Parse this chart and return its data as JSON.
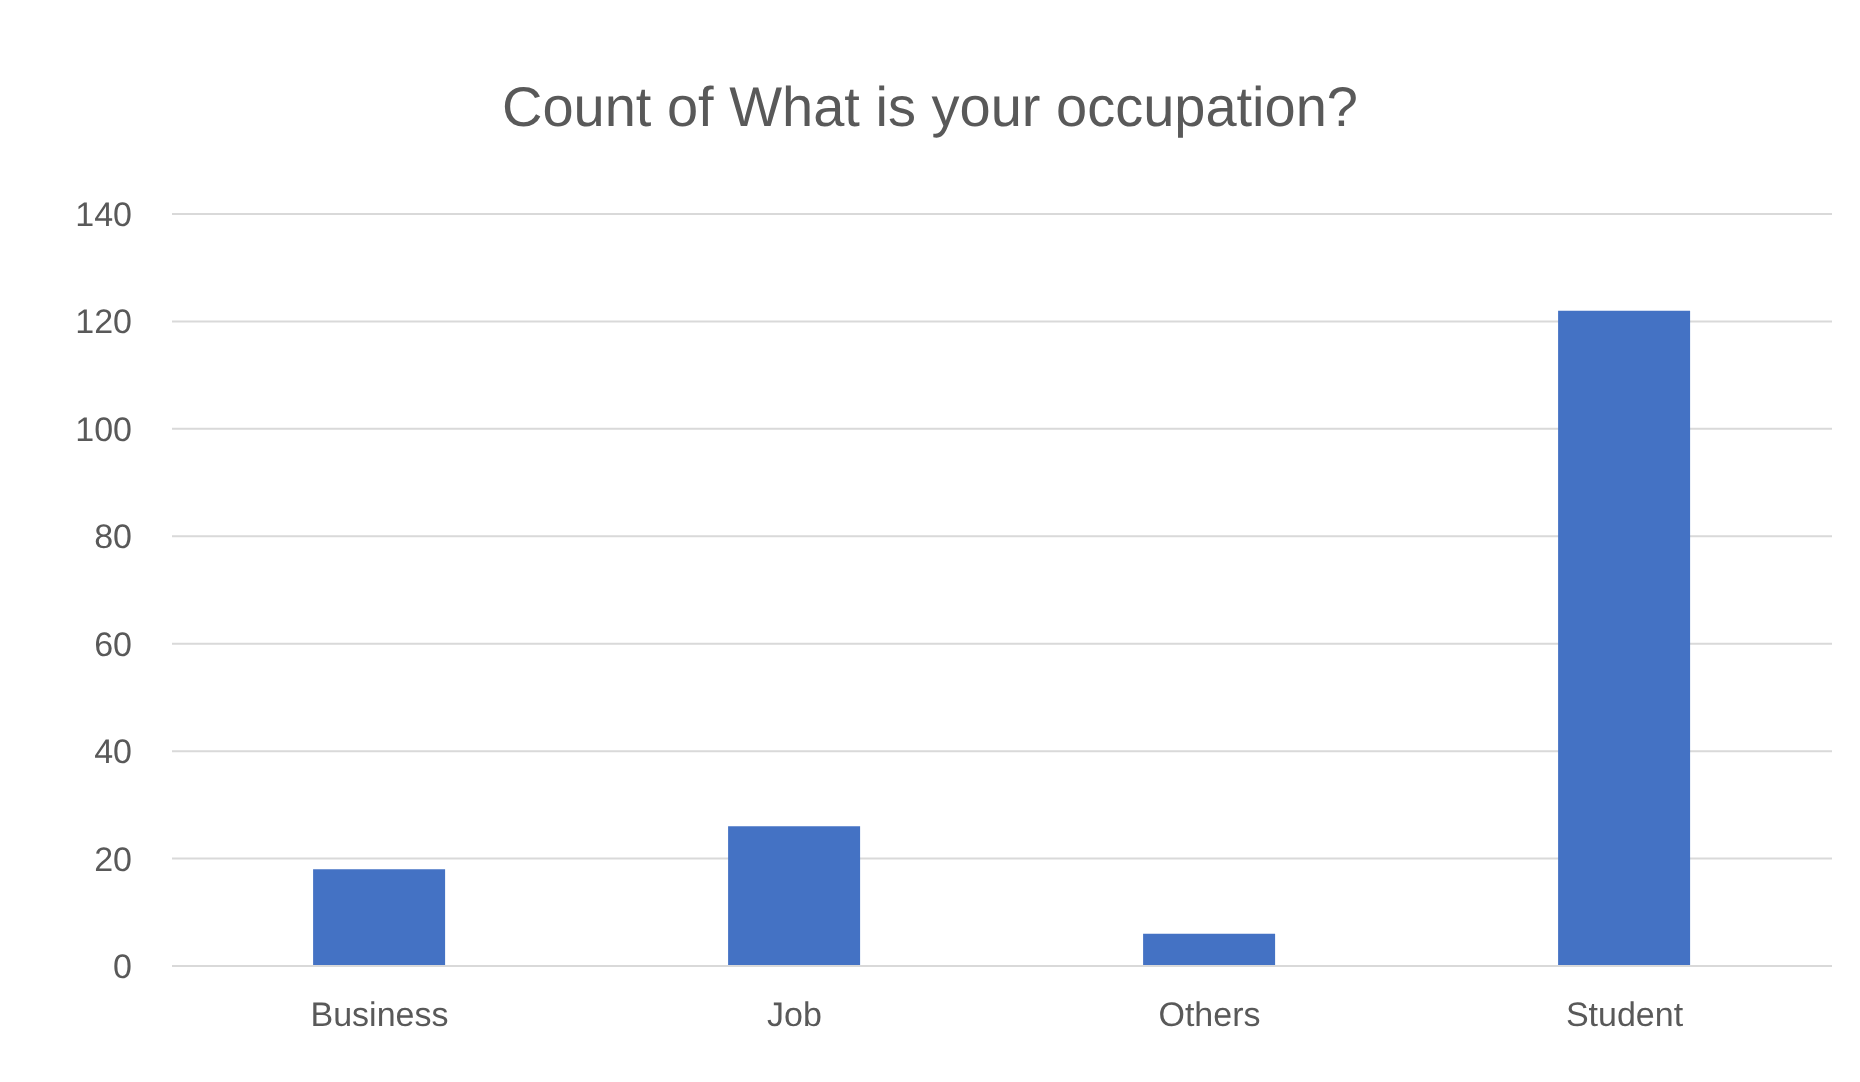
{
  "chart_data": {
    "type": "bar",
    "title": "Count of What is your occupation?",
    "categories": [
      "Business",
      "Job",
      "Others",
      "Student"
    ],
    "series": [
      {
        "color": "#4472c4",
        "values": [
          18,
          26,
          6,
          122
        ]
      }
    ],
    "ylim": [
      0,
      140
    ],
    "yticks": [
      0,
      20,
      40,
      60,
      80,
      100,
      120,
      140
    ],
    "grid": "y",
    "legend": false
  }
}
